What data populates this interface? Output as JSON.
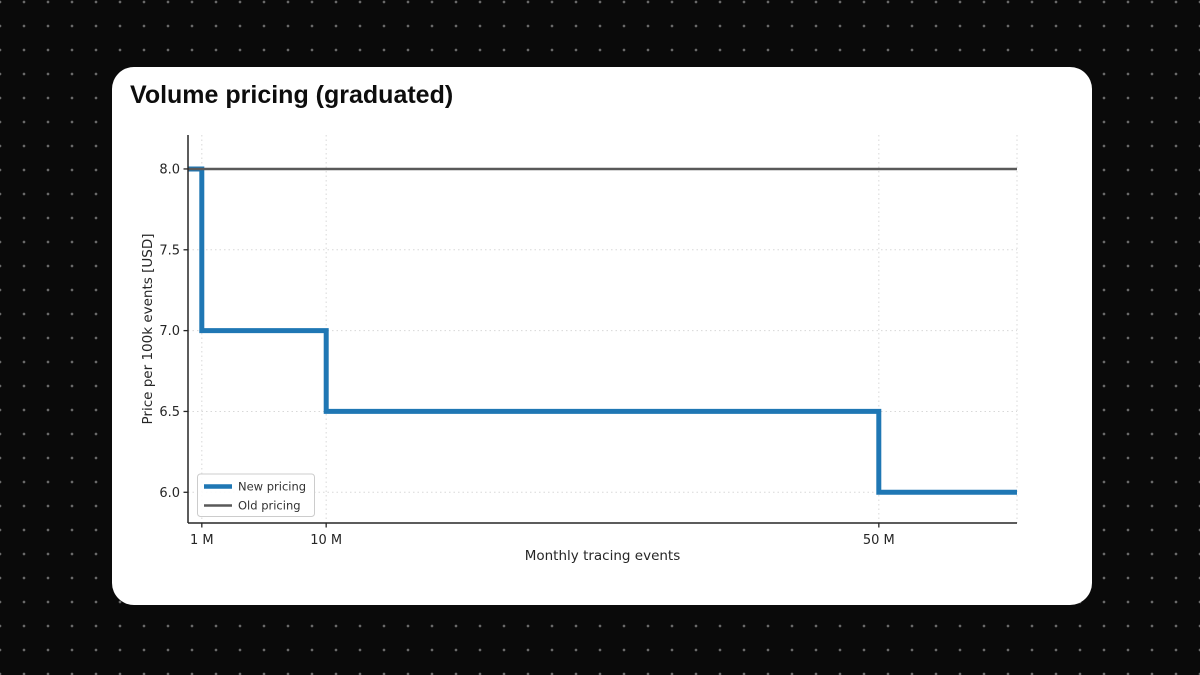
{
  "page": {
    "background_color": "#0a0a0a",
    "dot_color": "#6a6a6a"
  },
  "card": {
    "title": "Volume pricing (graduated)",
    "background_color": "#ffffff"
  },
  "chart_data": {
    "type": "line",
    "line_style": "step-post",
    "title": "Volume pricing (graduated)",
    "xlabel": "Monthly tracing events",
    "ylabel": "Price per 100k events [USD]",
    "x_units": "millions of monthly tracing events",
    "xlim": [
      0,
      60
    ],
    "ylim": [
      5.81,
      8.21
    ],
    "grid": true,
    "legend_position": "lower left",
    "xticks": [
      {
        "value": 1,
        "label": "1 M"
      },
      {
        "value": 10,
        "label": "10 M"
      },
      {
        "value": 50,
        "label": "50 M"
      },
      {
        "value": 60,
        "label": ""
      }
    ],
    "yticks": [
      {
        "value": 6.0,
        "label": "6.0"
      },
      {
        "value": 6.5,
        "label": "6.5"
      },
      {
        "value": 7.0,
        "label": "7.0"
      },
      {
        "value": 7.5,
        "label": "7.5"
      },
      {
        "value": 8.0,
        "label": "8.0"
      }
    ],
    "series": [
      {
        "name": "New pricing",
        "color": "#1f77b4",
        "line_width": 5,
        "points": [
          [
            0,
            8.0
          ],
          [
            1,
            8.0
          ],
          [
            1,
            7.0
          ],
          [
            10,
            7.0
          ],
          [
            10,
            6.5
          ],
          [
            50,
            6.5
          ],
          [
            50,
            6.0
          ],
          [
            60,
            6.0
          ]
        ]
      },
      {
        "name": "Old pricing",
        "color": "#595959",
        "line_width": 2.5,
        "points": [
          [
            0,
            8.0
          ],
          [
            60,
            8.0
          ]
        ]
      }
    ],
    "colors": {
      "grid": "#d8d8d8",
      "spine": "#262626",
      "tick": "#262626",
      "tick_label": "#262626",
      "axis_label": "#262626",
      "legend_border": "#cccccc",
      "legend_background": "#ffffff",
      "legend_text": "#333333"
    }
  }
}
